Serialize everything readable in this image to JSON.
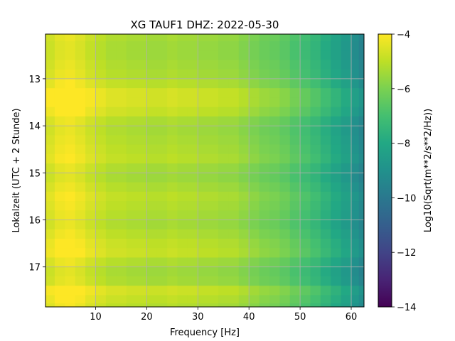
{
  "chart_data": {
    "type": "heatmap",
    "title": "XG TAUF1  DHZ: 2022-05-30",
    "xlabel": "Frequency [Hz]",
    "ylabel": "Lokalzeit (UTC + 2 Stunde)",
    "xlim": [
      0.2,
      62.5
    ],
    "ylim": [
      12.05,
      17.85
    ],
    "y_inverted": true,
    "x_ticks": [
      10,
      20,
      30,
      40,
      50,
      60
    ],
    "x_tick_labels": [
      "10",
      "20",
      "30",
      "40",
      "50",
      "60"
    ],
    "y_ticks": [
      13,
      14,
      15,
      16,
      17
    ],
    "y_tick_labels": [
      "13",
      "14",
      "15",
      "16",
      "17"
    ],
    "grid": true,
    "colormap": "viridis",
    "colorbar": {
      "label": "Log10(Sqrt(m**2/s**2/Hz))",
      "range": [
        -14,
        -4
      ],
      "ticks": [
        -4,
        -6,
        -8,
        -10,
        -12,
        -14
      ],
      "tick_labels": [
        "−4",
        "−6",
        "−8",
        "−10",
        "−12",
        "−14"
      ]
    },
    "x": [
      1,
      3,
      5,
      7,
      9,
      11,
      13,
      15,
      17,
      19,
      21,
      23,
      25,
      27,
      29,
      31,
      33,
      35,
      37,
      39,
      41,
      43,
      45,
      47,
      49,
      51,
      53,
      55,
      57,
      59,
      61,
      62
    ],
    "y": [
      12.1,
      12.3,
      12.5,
      12.7,
      12.9,
      13.1,
      13.3,
      13.5,
      13.7,
      13.9,
      14.1,
      14.3,
      14.5,
      14.7,
      14.9,
      15.1,
      15.3,
      15.5,
      15.7,
      15.9,
      16.1,
      16.3,
      16.5,
      16.7,
      16.9,
      17.1,
      17.3,
      17.5,
      17.7,
      17.85
    ],
    "z_profile_by_x": [
      -4.5,
      -4.2,
      -4.1,
      -4.3,
      -4.6,
      -4.8,
      -5.0,
      -5.0,
      -5.1,
      -5.1,
      -5.2,
      -5.2,
      -5.1,
      -5.2,
      -5.2,
      -5.3,
      -5.3,
      -5.4,
      -5.4,
      -5.6,
      -5.8,
      -6.0,
      -6.1,
      -6.3,
      -6.6,
      -6.9,
      -7.2,
      -7.6,
      -8.0,
      -8.4,
      -8.9,
      -9.3
    ],
    "z_row_offsets_by_y": [
      -0.2,
      -0.3,
      -0.3,
      -0.2,
      -0.1,
      0.1,
      0.5,
      0.5,
      0.3,
      -0.1,
      -0.2,
      -0.1,
      0.0,
      0.1,
      -0.2,
      -0.3,
      -0.1,
      0.1,
      0.0,
      -0.1,
      -0.2,
      0.0,
      0.2,
      0.3,
      -0.1,
      -0.3,
      -0.2,
      0.4,
      0.2,
      0.0
    ]
  }
}
